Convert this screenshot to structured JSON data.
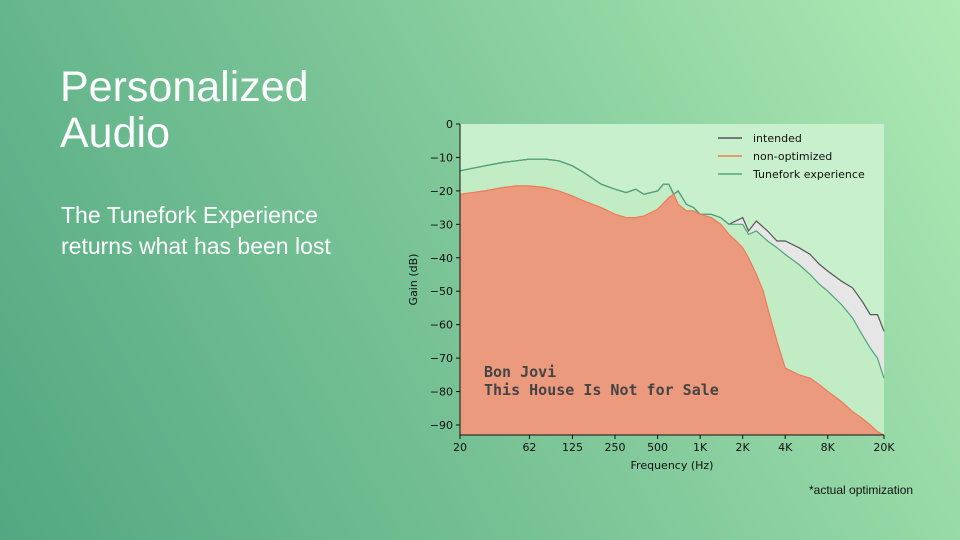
{
  "slide": {
    "title_line1": "Personalized",
    "title_line2": "Audio",
    "subtitle": "The Tunefork Experience returns what has been lost",
    "footnote": "*actual optimization"
  },
  "colors": {
    "intended_line": "#555555",
    "intended_fill": "#e6e6e6",
    "nonopt_line": "#ee7a5a",
    "nonopt_fill": "#ec9a7e",
    "tunefork_line": "#4da57d",
    "tunefork_fill": "#c2ecc4",
    "plot_bg": "#c9f0cc"
  },
  "chart_data": {
    "type": "area",
    "title": "",
    "xlabel": "Frequency (Hz)",
    "ylabel": "Gain (dB)",
    "x_scale": "log",
    "xlim": [
      20,
      20000
    ],
    "ylim": [
      -93,
      0
    ],
    "x_ticks": [
      20,
      62,
      125,
      250,
      500,
      1000,
      2000,
      4000,
      8000,
      20000
    ],
    "x_tick_labels": [
      "20",
      "62",
      "125",
      "250",
      "500",
      "1K",
      "2K",
      "4K",
      "8K",
      "20K"
    ],
    "y_ticks": [
      0,
      -10,
      -20,
      -30,
      -40,
      -50,
      -60,
      -70,
      -80,
      -90
    ],
    "y_tick_labels": [
      "0",
      "−10",
      "−20",
      "−30",
      "−40",
      "−50",
      "−60",
      "−70",
      "−80",
      "−90"
    ],
    "grid": false,
    "legend_position": "top-right",
    "annotation_line1": "Bon Jovi",
    "annotation_line2": "This House Is Not for Sale",
    "series": [
      {
        "name": "intended",
        "x": [
          20,
          30,
          40,
          50,
          62,
          80,
          100,
          125,
          150,
          200,
          250,
          300,
          350,
          400,
          500,
          550,
          600,
          650,
          700,
          800,
          900,
          1000,
          1200,
          1400,
          1600,
          2000,
          2200,
          2500,
          3000,
          3500,
          4000,
          5000,
          6000,
          7000,
          8000,
          10000,
          12000,
          14000,
          16000,
          18000,
          20000
        ],
        "y": [
          -14,
          -12.5,
          -11.5,
          -11,
          -10.5,
          -10.5,
          -11,
          -12.5,
          -14.5,
          -18,
          -19.5,
          -20.5,
          -19.5,
          -21,
          -20,
          -18,
          -18,
          -21,
          -20,
          -24,
          -25,
          -27,
          -27,
          -28,
          -30,
          -28,
          -32,
          -29,
          -32,
          -35,
          -35,
          -37,
          -39,
          -42,
          -44,
          -47,
          -49,
          -53,
          -57,
          -57,
          -62
        ]
      },
      {
        "name": "non-optimized",
        "x": [
          20,
          30,
          40,
          50,
          62,
          80,
          100,
          125,
          150,
          200,
          250,
          300,
          350,
          400,
          500,
          600,
          650,
          700,
          800,
          900,
          1000,
          1200,
          1400,
          1600,
          1800,
          2000,
          2200,
          2500,
          2800,
          3000,
          3500,
          4000,
          5000,
          6000,
          7000,
          8000,
          10000,
          12000,
          14000,
          16000,
          18000,
          20000
        ],
        "y": [
          -21,
          -20,
          -19,
          -18.5,
          -18.5,
          -19,
          -20,
          -21.5,
          -23,
          -25,
          -27,
          -28,
          -28,
          -27.5,
          -25.5,
          -22,
          -21,
          -24,
          -26,
          -26,
          -27,
          -28,
          -30,
          -33,
          -35,
          -37,
          -40,
          -45,
          -50,
          -55,
          -65,
          -73,
          -75,
          -76,
          -78,
          -80,
          -83,
          -86,
          -88,
          -90,
          -92,
          -93
        ]
      },
      {
        "name": "Tunefork experience",
        "x": [
          20,
          30,
          40,
          50,
          62,
          80,
          100,
          125,
          150,
          200,
          250,
          300,
          350,
          400,
          500,
          550,
          600,
          650,
          700,
          800,
          900,
          1000,
          1200,
          1400,
          1600,
          2000,
          2200,
          2500,
          3000,
          3500,
          4000,
          5000,
          6000,
          7000,
          8000,
          10000,
          12000,
          14000,
          16000,
          18000,
          20000
        ],
        "y": [
          -14,
          -12.5,
          -11.5,
          -11,
          -10.5,
          -10.5,
          -11,
          -12.5,
          -14.5,
          -18,
          -19.5,
          -20.5,
          -19.5,
          -21,
          -20,
          -18,
          -18,
          -21,
          -20,
          -24,
          -25,
          -27,
          -27,
          -28,
          -30,
          -30,
          -33,
          -32,
          -35,
          -37,
          -39,
          -42,
          -45,
          -48,
          -50,
          -54,
          -58,
          -63,
          -67,
          -70,
          -76
        ]
      }
    ]
  }
}
